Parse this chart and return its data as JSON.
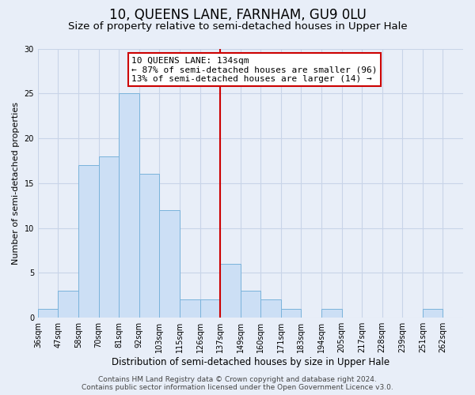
{
  "title": "10, QUEENS LANE, FARNHAM, GU9 0LU",
  "subtitle": "Size of property relative to semi-detached houses in Upper Hale",
  "xlabel": "Distribution of semi-detached houses by size in Upper Hale",
  "ylabel": "Number of semi-detached properties",
  "bin_labels": [
    "36sqm",
    "47sqm",
    "58sqm",
    "70sqm",
    "81sqm",
    "92sqm",
    "103sqm",
    "115sqm",
    "126sqm",
    "137sqm",
    "149sqm",
    "160sqm",
    "171sqm",
    "183sqm",
    "194sqm",
    "205sqm",
    "217sqm",
    "228sqm",
    "239sqm",
    "251sqm",
    "262sqm"
  ],
  "bar_values": [
    1,
    3,
    17,
    18,
    25,
    16,
    12,
    2,
    2,
    6,
    3,
    2,
    1,
    0,
    1,
    0,
    0,
    0,
    0,
    1,
    0
  ],
  "bar_color": "#ccdff5",
  "bar_edge_color": "#7ab3db",
  "vline_x_index": 9,
  "vline_color": "#cc0000",
  "annotation_line1": "10 QUEENS LANE: 134sqm",
  "annotation_line2": "← 87% of semi-detached houses are smaller (96)",
  "annotation_line3": "13% of semi-detached houses are larger (14) →",
  "annotation_box_facecolor": "#ffffff",
  "annotation_box_edgecolor": "#cc0000",
  "ylim": [
    0,
    30
  ],
  "yticks": [
    0,
    5,
    10,
    15,
    20,
    25,
    30
  ],
  "footer_line1": "Contains HM Land Registry data © Crown copyright and database right 2024.",
  "footer_line2": "Contains public sector information licensed under the Open Government Licence v3.0.",
  "background_color": "#e8eef8",
  "plot_bg_color": "#e8eef8",
  "grid_color": "#c8d4e8",
  "title_fontsize": 12,
  "subtitle_fontsize": 9.5,
  "xlabel_fontsize": 8.5,
  "ylabel_fontsize": 8,
  "tick_fontsize": 7,
  "annotation_fontsize": 8,
  "footer_fontsize": 6.5
}
